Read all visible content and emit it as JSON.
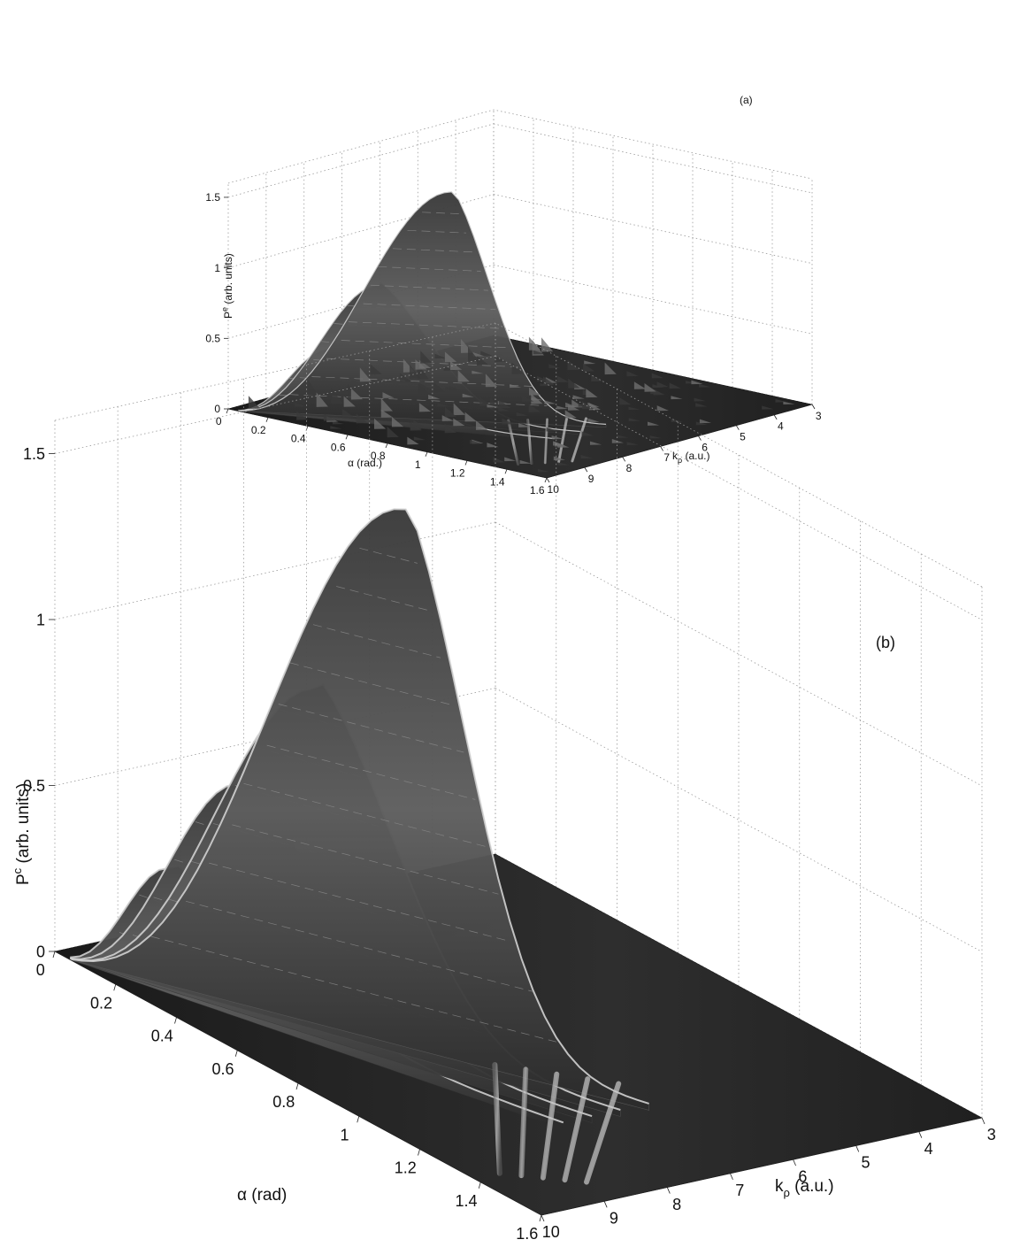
{
  "chart_data": [
    {
      "panel_label": "(a)",
      "type": "surface3d",
      "zlabel_base": "P",
      "zlabel_sup": "e",
      "zlabel_rest": " (arb. units)",
      "xlabel": "α (rad.)",
      "ylabel_base": "k",
      "ylabel_sub": "ρ",
      "ylabel_rest": " (a.u.)",
      "x_ticks": [
        "0",
        "0.2",
        "0.4",
        "0.6",
        "0.8",
        "1",
        "1.2",
        "1.4",
        "1.6"
      ],
      "y_ticks": [
        "10",
        "9",
        "8",
        "7",
        "6",
        "5",
        "4",
        "3"
      ],
      "z_ticks": [
        "0",
        "0.5",
        "1",
        "1.5"
      ],
      "xlim": [
        0,
        1.6
      ],
      "ylim": [
        3,
        10
      ],
      "zlim": [
        0,
        1.6
      ],
      "grid": true,
      "ridges": [
        {
          "peak_alpha": 0.75,
          "peak_value": 1.62
        },
        {
          "peak_alpha": 0.55,
          "peak_value": 0.96
        },
        {
          "peak_alpha": 0.4,
          "peak_value": 0.5
        }
      ]
    },
    {
      "panel_label": "(b)",
      "type": "surface3d",
      "zlabel_base": "P",
      "zlabel_sup": "c",
      "zlabel_rest": " (arb. units)",
      "xlabel": "α (rad)",
      "ylabel_base": "k",
      "ylabel_sub": "ρ",
      "ylabel_rest": " (a.u.)",
      "x_ticks": [
        "0",
        "0.2",
        "0.4",
        "0.6",
        "0.8",
        "1",
        "1.2",
        "1.4",
        "1.6"
      ],
      "y_ticks": [
        "10",
        "9",
        "8",
        "7",
        "6",
        "5",
        "4",
        "3"
      ],
      "z_ticks": [
        "0",
        "0.5",
        "1",
        "1.5"
      ],
      "xlim": [
        0,
        1.6
      ],
      "ylim": [
        3,
        10
      ],
      "zlim": [
        0,
        1.6
      ],
      "grid": true,
      "ridges": [
        {
          "peak_alpha": 0.75,
          "peak_value": 1.62
        },
        {
          "peak_alpha": 0.6,
          "peak_value": 1.03
        },
        {
          "peak_alpha": 0.45,
          "peak_value": 0.69
        },
        {
          "peak_alpha": 0.3,
          "peak_value": 0.38
        }
      ]
    }
  ]
}
